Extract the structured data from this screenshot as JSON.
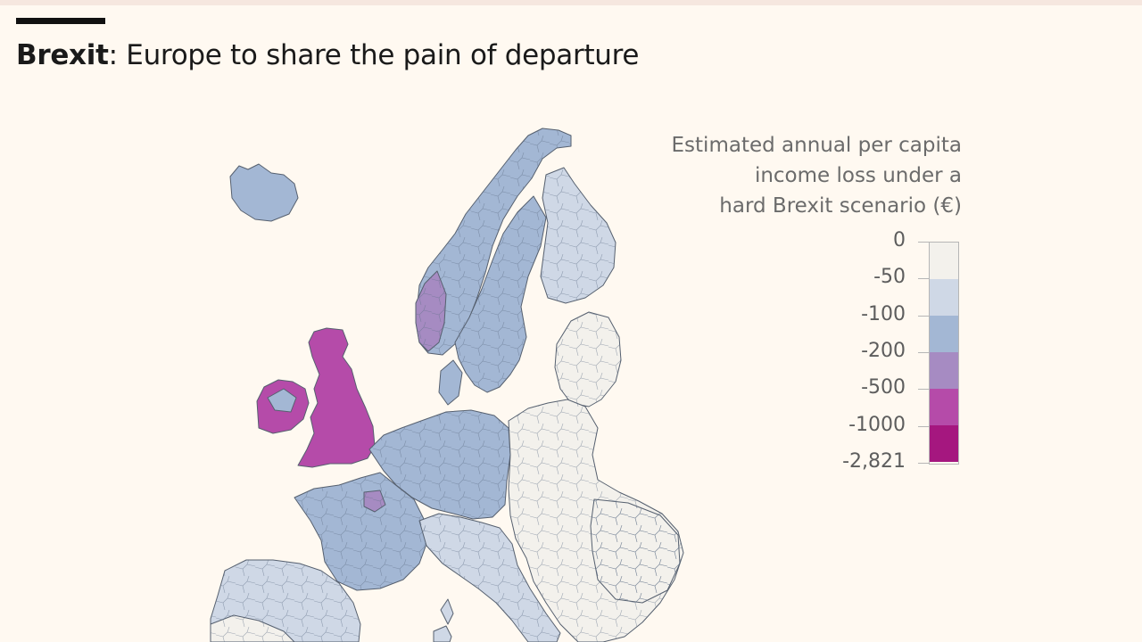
{
  "title": {
    "bold": "Brexit",
    "rest": ": Europe to share the pain of departure"
  },
  "legend": {
    "title_lines": [
      "Estimated annual per capita",
      "income loss under a",
      "hard Brexit scenario (€)"
    ],
    "labels": [
      "0",
      "-50",
      "-100",
      "-200",
      "-500",
      "-1000",
      "-2,821"
    ],
    "colors": [
      "#f3f1ec",
      "#cfd8e6",
      "#a3b7d4",
      "#a68bc2",
      "#b54ba9",
      "#a5177f"
    ]
  },
  "regions": [
    {
      "name": "iceland",
      "level": 2
    },
    {
      "name": "ireland",
      "level": 4
    },
    {
      "name": "ireland-east",
      "level": 2
    },
    {
      "name": "great-britain",
      "level": 4
    },
    {
      "name": "norway",
      "level": 2
    },
    {
      "name": "norway-west",
      "level": 3
    },
    {
      "name": "sweden",
      "level": 2
    },
    {
      "name": "finland",
      "level": 1
    },
    {
      "name": "denmark",
      "level": 2
    },
    {
      "name": "baltics",
      "level": 0
    },
    {
      "name": "benelux-germany",
      "level": 2
    },
    {
      "name": "france",
      "level": 2
    },
    {
      "name": "paris-region",
      "level": 3
    },
    {
      "name": "alps-italy",
      "level": 1
    },
    {
      "name": "eastern-europe",
      "level": 0
    },
    {
      "name": "romania-bulgaria",
      "level": 0
    },
    {
      "name": "iberia",
      "level": 1
    },
    {
      "name": "iberia-south",
      "level": 0
    },
    {
      "name": "corsica",
      "level": 1
    },
    {
      "name": "sardinia",
      "level": 1
    }
  ]
}
